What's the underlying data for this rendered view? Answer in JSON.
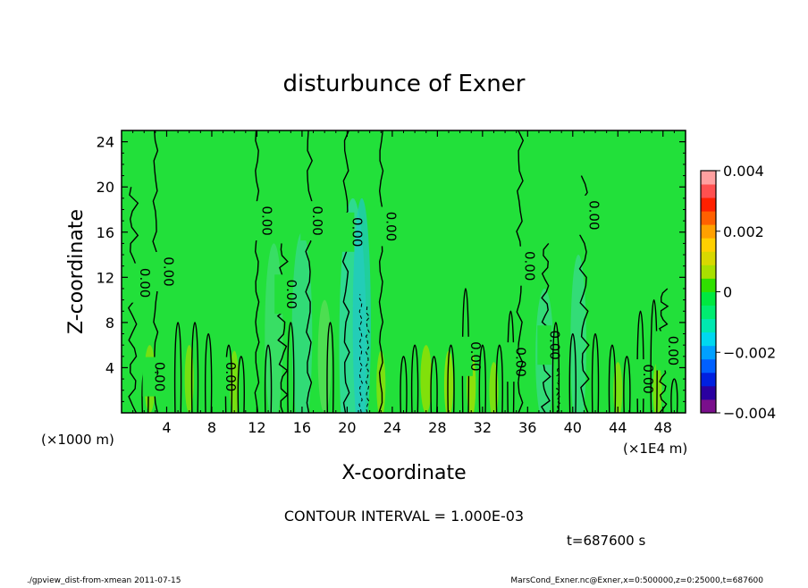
{
  "chart_data": {
    "type": "heatmap",
    "title": "disturbunce of Exner",
    "xlabel": "X-coordinate",
    "ylabel": "Z-coordinate",
    "x_unit_label": "(×1E4 m)",
    "y_unit_label": "(×1000 m)",
    "xlim": [
      0,
      50
    ],
    "ylim": [
      0,
      25
    ],
    "x_ticks": [
      4,
      8,
      12,
      16,
      20,
      24,
      28,
      32,
      36,
      40,
      44,
      48
    ],
    "y_ticks": [
      4,
      8,
      12,
      16,
      20,
      24
    ],
    "colorbar": {
      "min": -0.004,
      "max": 0.004,
      "tick_values": [
        0.004,
        0.002,
        0,
        -0.002,
        -0.004
      ],
      "tick_labels": [
        "0.004",
        "0.002",
        "0",
        "−0.002",
        "−0.004"
      ],
      "colors": [
        "#7a0f8c",
        "#2a00a0",
        "#0020e0",
        "#0060ff",
        "#00a0ff",
        "#00d8f0",
        "#00e8b0",
        "#00ec70",
        "#00e840",
        "#30e000",
        "#a8e000",
        "#d8d800",
        "#ffd000",
        "#ffa000",
        "#ff6000",
        "#ff2000",
        "#ff5050",
        "#ffa0a0"
      ]
    },
    "contour_interval": "CONTOUR INTERVAL = 1.000E-03",
    "contour_labels": [
      {
        "x": 1.2,
        "y": 11.5,
        "text": "0.00"
      },
      {
        "x": 3.3,
        "y": 12.5,
        "text": "0.00"
      },
      {
        "x": 2.5,
        "y": 3.2,
        "text": "0.00"
      },
      {
        "x": 8.8,
        "y": 3.2,
        "text": "0.00"
      },
      {
        "x": 12.0,
        "y": 17.0,
        "text": "0.00"
      },
      {
        "x": 14.2,
        "y": 10.5,
        "text": "0.00"
      },
      {
        "x": 16.5,
        "y": 17.0,
        "text": "0.00"
      },
      {
        "x": 20.0,
        "y": 16.0,
        "text": "0.00"
      },
      {
        "x": 23.0,
        "y": 16.5,
        "text": "0.00"
      },
      {
        "x": 30.5,
        "y": 5.0,
        "text": "0.00"
      },
      {
        "x": 34.5,
        "y": 4.5,
        "text": "0.00"
      },
      {
        "x": 35.3,
        "y": 13.0,
        "text": "0.00"
      },
      {
        "x": 37.5,
        "y": 6.0,
        "text": "0.00"
      },
      {
        "x": 41.0,
        "y": 17.5,
        "text": "0.00"
      },
      {
        "x": 45.8,
        "y": 3.0,
        "text": "0.00"
      },
      {
        "x": 48.0,
        "y": 5.5,
        "text": "0.00"
      }
    ]
  },
  "time_label": "t=687600 s",
  "footer": {
    "left": "./gpview_dist-from-xmean  2011-07-15",
    "right": "MarsCond_Exner.nc@Exner,x=0:500000,z=0:25000,t=687600"
  }
}
